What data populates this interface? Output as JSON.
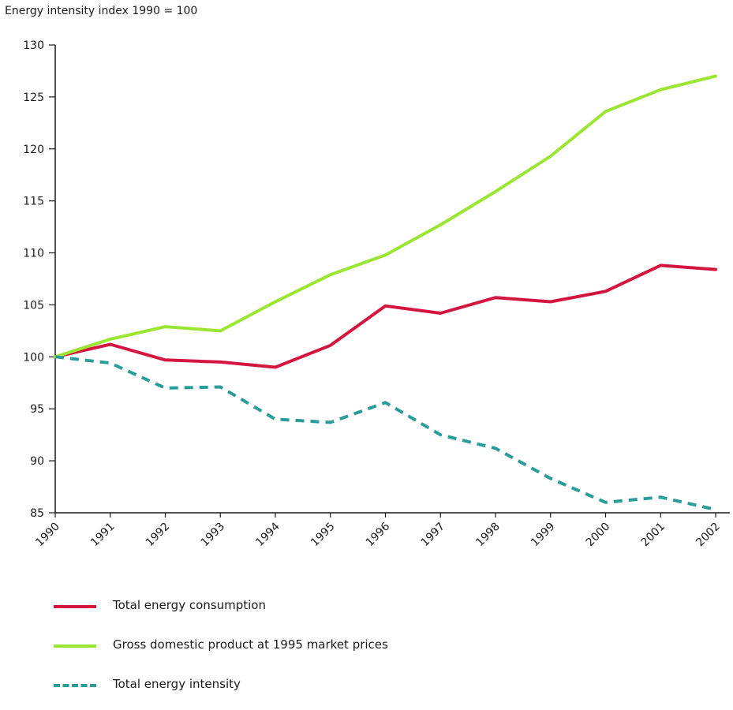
{
  "chart_data": {
    "type": "line",
    "title": "Energy intensity index 1990 = 100",
    "xlabel": "",
    "ylabel": "",
    "ylim": [
      85,
      130
    ],
    "yticks": [
      85,
      90,
      95,
      100,
      105,
      110,
      115,
      120,
      125,
      130
    ],
    "x": [
      "1990",
      "1991",
      "1992",
      "1993",
      "1994",
      "1995",
      "1996",
      "1997",
      "1998",
      "1999",
      "2000",
      "2001",
      "2002"
    ],
    "grid": false,
    "legend_position": "bottom",
    "series": [
      {
        "name": "Total energy consumption",
        "color": "#d4153f",
        "dash": "solid",
        "values": [
          100,
          101.2,
          99.7,
          99.5,
          99.0,
          101.1,
          104.9,
          104.2,
          105.7,
          105.3,
          106.3,
          108.8,
          108.4
        ]
      },
      {
        "name": "Gross domestic product at 1995 market prices",
        "color": "#9be633",
        "dash": "solid",
        "values": [
          100,
          101.7,
          102.9,
          102.5,
          105.3,
          107.9,
          109.8,
          112.7,
          115.9,
          119.3,
          123.6,
          125.7,
          127.0
        ]
      },
      {
        "name": "Total energy intensity",
        "color": "#2a9d9a",
        "dash": "dashed",
        "values": [
          100,
          99.4,
          97.0,
          97.1,
          94.0,
          93.7,
          95.6,
          92.5,
          91.2,
          88.3,
          86.0,
          86.5,
          85.3
        ]
      }
    ]
  }
}
